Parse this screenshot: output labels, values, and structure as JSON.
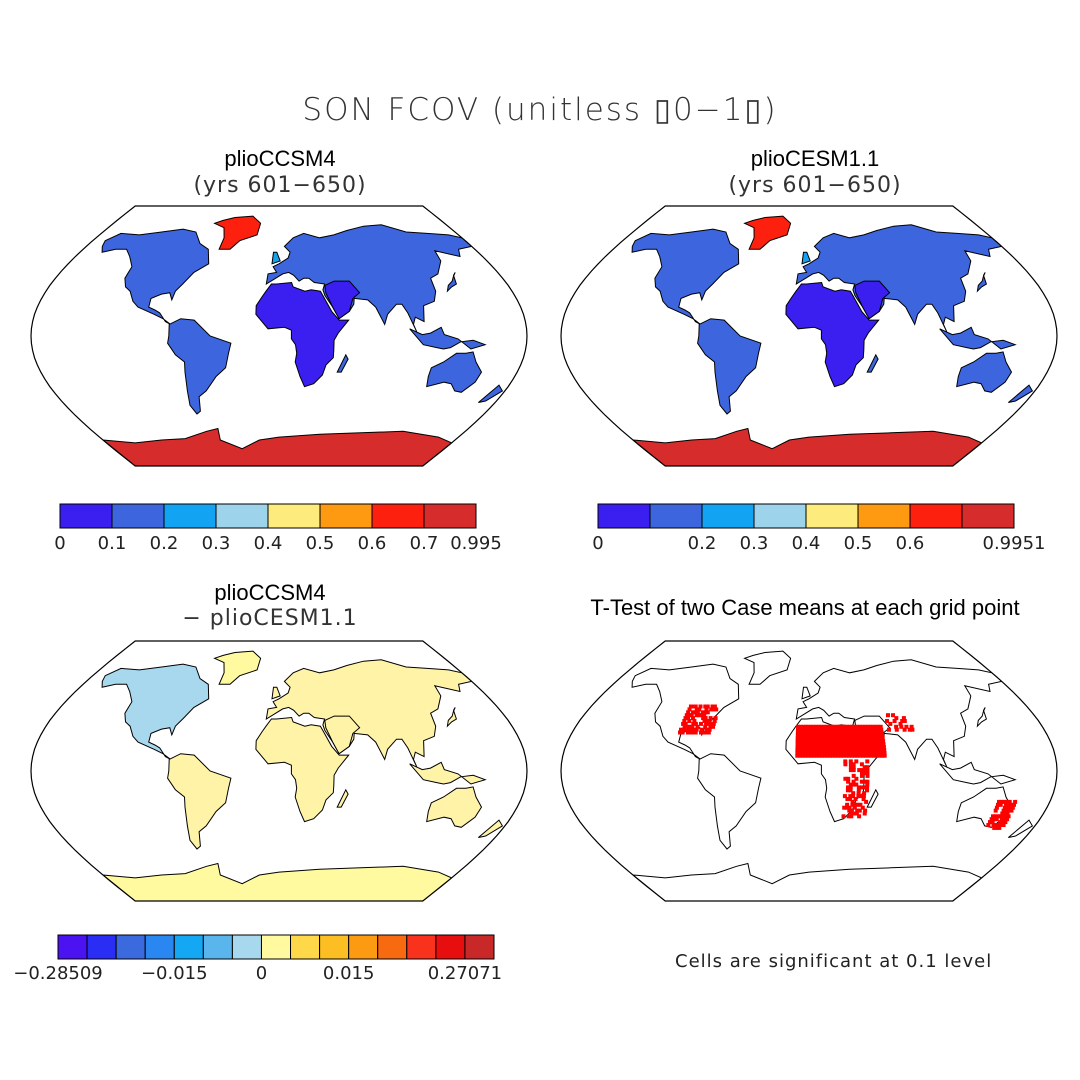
{
  "title": "SON FCOV (unitless ▯0−1▯)",
  "panels": [
    {
      "title": "plioCCSM4",
      "subtitle": "(yrs 601−650)"
    },
    {
      "title": "plioCESM1.1",
      "subtitle": "(yrs 601−650)"
    },
    {
      "title": "plioCCSM4",
      "subtitle": "− plioCESM1.1"
    },
    {
      "title": "T-Test of two Case means at each grid point",
      "subtitle": ""
    }
  ],
  "note": "Cells are significant at 0.1 level",
  "chart_data": [
    {
      "type": "heatmap",
      "title": "plioCCSM4",
      "subtitle": "(yrs 601−650)",
      "projection": "robinson-world",
      "colorbar": {
        "colors": [
          "#3a1ff0",
          "#3d66de",
          "#12a4f2",
          "#9ed3ec",
          "#fdeb7e",
          "#fd9a12",
          "#fd200f",
          "#d72c2c"
        ],
        "ticks": [
          "0",
          "0.1",
          "0.2",
          "0.3",
          "0.4",
          "0.5",
          "0.6",
          "0.7",
          "0.995"
        ]
      }
    },
    {
      "type": "heatmap",
      "title": "plioCESM1.1",
      "subtitle": "(yrs 601−650)",
      "projection": "robinson-world",
      "colorbar": {
        "colors": [
          "#3a1ff0",
          "#3d66de",
          "#12a4f2",
          "#9ed3ec",
          "#fdeb7e",
          "#fd9a12",
          "#fd200f",
          "#d72c2c"
        ],
        "ticks": [
          "0",
          "",
          "0.2",
          "0.3",
          "0.4",
          "0.5",
          "0.6",
          "",
          "0.9951"
        ]
      }
    },
    {
      "type": "heatmap",
      "title": "plioCCSM4",
      "subtitle": "− plioCESM1.1",
      "projection": "robinson-world",
      "colorbar": {
        "colors": [
          "#4b12f2",
          "#2a2ef5",
          "#3b6ade",
          "#2a86f0",
          "#14a8f4",
          "#5ab5ec",
          "#a8d8ee",
          "#fffaa0",
          "#ffd84a",
          "#fcbe22",
          "#fc9a12",
          "#f86a10",
          "#f8321c",
          "#e60e0e",
          "#c82828"
        ],
        "ticks": [
          "−0.28509",
          "",
          "",
          "",
          "−0.015",
          "",
          "",
          "0",
          "",
          "",
          "0.015",
          "",
          "",
          "",
          "0.27071"
        ]
      }
    },
    {
      "type": "heatmap",
      "title": "T-Test of two Case means at each grid point",
      "projection": "robinson-world",
      "significance_color": "#ff0000"
    }
  ]
}
